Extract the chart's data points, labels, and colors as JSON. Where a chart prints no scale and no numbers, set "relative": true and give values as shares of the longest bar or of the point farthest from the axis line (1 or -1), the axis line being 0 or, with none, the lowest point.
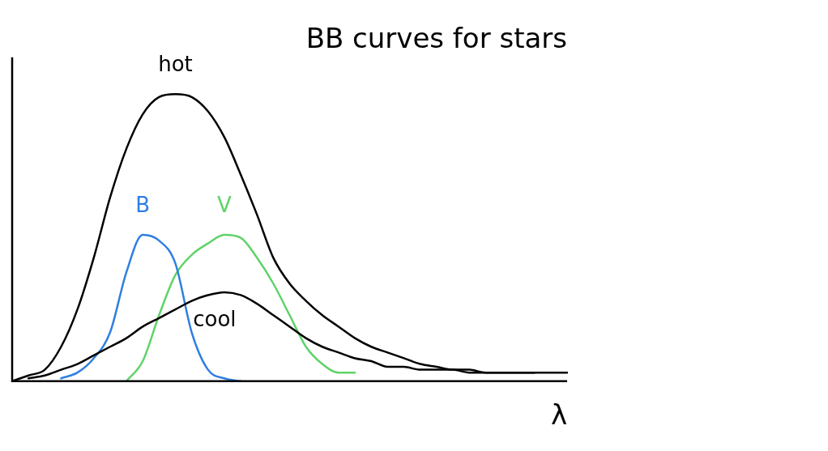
{
  "chart_data": {
    "type": "line",
    "title": "BB curves for stars",
    "xlabel": "λ",
    "relative": true,
    "legend": false,
    "grid": false,
    "marker": "none",
    "line_style": "solid",
    "categories": [
      null,
      null,
      null,
      null,
      null,
      null,
      null,
      null,
      null,
      null,
      null,
      null,
      null,
      null,
      null,
      null,
      null,
      null,
      null,
      null,
      null,
      null,
      null,
      null,
      null,
      null,
      null,
      null,
      null,
      null,
      null,
      null,
      null,
      null,
      null
    ],
    "series": [
      {
        "name": "hot",
        "color": "#000000",
        "values": [
          0,
          0.02,
          0.04,
          0.12,
          0.25,
          0.43,
          0.64,
          0.81,
          0.93,
          0.99,
          1,
          0.99,
          0.94,
          0.85,
          0.72,
          0.58,
          0.43,
          0.34,
          0.28,
          0.23,
          0.19,
          0.15,
          0.12,
          0.1,
          0.08,
          0.06,
          0.05,
          0.04,
          0.04,
          0.03,
          0.03,
          0.03,
          0.03,
          0.03,
          0.03
        ]
      },
      {
        "name": "cool",
        "color": "#000000",
        "values": [
          null,
          0.01,
          0.02,
          0.04,
          0.06,
          0.09,
          0.12,
          0.15,
          0.19,
          0.22,
          0.25,
          0.28,
          0.3,
          0.31,
          0.3,
          0.27,
          0.23,
          0.19,
          0.15,
          0.12,
          0.1,
          0.08,
          0.07,
          0.05,
          0.05,
          0.04,
          0.04,
          0.04,
          0.03,
          0.03,
          0.03,
          0.03,
          0.03,
          null,
          null
        ]
      },
      {
        "name": "B",
        "color": "#2f7fe0",
        "values": [
          null,
          null,
          null,
          0.01,
          0.03,
          0.08,
          0.17,
          0.38,
          0.51,
          0.49,
          0.41,
          0.17,
          0.04,
          0.01,
          0,
          null,
          null,
          null,
          null,
          null,
          null,
          null,
          null,
          null,
          null,
          null,
          null,
          null,
          null,
          null,
          null,
          null,
          null,
          null,
          null
        ]
      },
      {
        "name": "V",
        "color": "#5fd36a",
        "values": [
          null,
          null,
          null,
          null,
          null,
          null,
          null,
          0,
          0.07,
          0.23,
          0.37,
          0.44,
          0.48,
          0.51,
          0.5,
          0.43,
          0.34,
          0.23,
          0.12,
          0.06,
          0.03,
          0.03,
          null,
          null,
          null,
          null,
          null,
          null,
          null,
          null,
          null,
          null,
          null,
          null,
          null
        ]
      }
    ]
  }
}
